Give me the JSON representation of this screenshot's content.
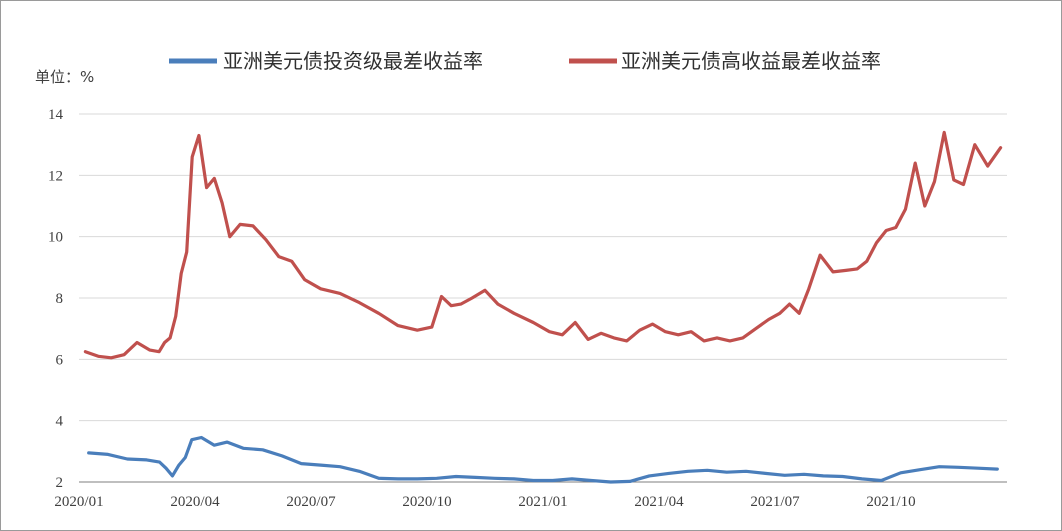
{
  "chart_data": {
    "type": "line",
    "unit_label": "单位：%",
    "ylim": [
      2,
      14
    ],
    "y_ticks": [
      2,
      4,
      6,
      8,
      10,
      12,
      14
    ],
    "x_range": [
      "2020/01",
      "2021/12"
    ],
    "x_ticks": [
      "2020/01",
      "2020/04",
      "2020/07",
      "2020/10",
      "2021/01",
      "2021/04",
      "2021/07",
      "2021/10"
    ],
    "grid": "horizontal",
    "legend_position": "top",
    "colors": {
      "investment_grade": "#4A7EBB",
      "high_yield": "#C0504D"
    },
    "series": [
      {
        "key": "investment_grade",
        "name": "亚洲美元债投资级最差收益率",
        "x": [
          "2020/01",
          "2020/01",
          "2020/02",
          "2020/02",
          "2020/03",
          "2020/03",
          "2020/03",
          "2020/03",
          "2020/03",
          "2020/03",
          "2020/04",
          "2020/04",
          "2020/04",
          "2020/05",
          "2020/05",
          "2020/06",
          "2020/06",
          "2020/07",
          "2020/07",
          "2020/08",
          "2020/08",
          "2020/09",
          "2020/09",
          "2020/10",
          "2020/10",
          "2020/11",
          "2020/11",
          "2020/12",
          "2020/12",
          "2021/01",
          "2021/01",
          "2021/02",
          "2021/02",
          "2021/03",
          "2021/03",
          "2021/04",
          "2021/04",
          "2021/05",
          "2021/05",
          "2021/06",
          "2021/06",
          "2021/07",
          "2021/07",
          "2021/08",
          "2021/08",
          "2021/09",
          "2021/09",
          "2021/10",
          "2021/10",
          "2021/11",
          "2021/11",
          "2021/12",
          "2021/12"
        ],
        "values": [
          2.95,
          2.9,
          2.75,
          2.72,
          2.65,
          2.45,
          2.2,
          2.55,
          2.8,
          3.38,
          3.45,
          3.2,
          3.3,
          3.1,
          3.05,
          2.85,
          2.6,
          2.55,
          2.5,
          2.35,
          2.12,
          2.1,
          2.1,
          2.12,
          2.18,
          2.15,
          2.12,
          2.1,
          2.05,
          2.05,
          2.1,
          2.05,
          2.0,
          2.02,
          2.2,
          2.28,
          2.35,
          2.38,
          2.32,
          2.35,
          2.28,
          2.22,
          2.25,
          2.2,
          2.18,
          2.1,
          2.05,
          2.3,
          2.4,
          2.5,
          2.48,
          2.45,
          2.42
        ]
      },
      {
        "key": "high_yield",
        "name": "亚洲美元债高收益最差收益率",
        "x": [
          "2020/01",
          "2020/01",
          "2020/01",
          "2020/02",
          "2020/02",
          "2020/02",
          "2020/03",
          "2020/03",
          "2020/03",
          "2020/03",
          "2020/03",
          "2020/03",
          "2020/03",
          "2020/04",
          "2020/04",
          "2020/04",
          "2020/04",
          "2020/04",
          "2020/05",
          "2020/05",
          "2020/05",
          "2020/06",
          "2020/06",
          "2020/06",
          "2020/07",
          "2020/07",
          "2020/08",
          "2020/08",
          "2020/09",
          "2020/09",
          "2020/10",
          "2020/10",
          "2020/10",
          "2020/10",
          "2020/11",
          "2020/11",
          "2020/11",
          "2020/12",
          "2020/12",
          "2021/01",
          "2021/01",
          "2021/01",
          "2021/02",
          "2021/02",
          "2021/02",
          "2021/03",
          "2021/03",
          "2021/03",
          "2021/04",
          "2021/04",
          "2021/04",
          "2021/05",
          "2021/05",
          "2021/05",
          "2021/06",
          "2021/06",
          "2021/06",
          "2021/07",
          "2021/07",
          "2021/07",
          "2021/07",
          "2021/08",
          "2021/08",
          "2021/08",
          "2021/09",
          "2021/09",
          "2021/09",
          "2021/09",
          "2021/10",
          "2021/10",
          "2021/10",
          "2021/10",
          "2021/11",
          "2021/11",
          "2021/11",
          "2021/11",
          "2021/12",
          "2021/12",
          "2021/12"
        ],
        "values": [
          6.25,
          6.1,
          6.05,
          6.15,
          6.55,
          6.3,
          6.25,
          6.55,
          6.7,
          7.4,
          8.8,
          9.5,
          12.6,
          13.3,
          11.6,
          11.9,
          11.1,
          10.0,
          10.4,
          10.35,
          9.9,
          9.35,
          9.2,
          8.6,
          8.3,
          8.15,
          7.85,
          7.5,
          7.1,
          6.95,
          7.05,
          8.05,
          7.75,
          7.8,
          8.0,
          8.25,
          7.8,
          7.5,
          7.2,
          6.9,
          6.8,
          7.2,
          6.65,
          6.85,
          6.7,
          6.6,
          6.95,
          7.15,
          6.9,
          6.8,
          6.9,
          6.6,
          6.7,
          6.6,
          6.7,
          7.0,
          7.3,
          7.5,
          7.8,
          7.5,
          8.3,
          9.4,
          8.85,
          8.9,
          8.95,
          9.2,
          9.8,
          10.2,
          10.3,
          10.9,
          12.4,
          11.0,
          11.8,
          13.4,
          11.85,
          11.7,
          13.0,
          12.3,
          12.9
        ]
      }
    ]
  }
}
